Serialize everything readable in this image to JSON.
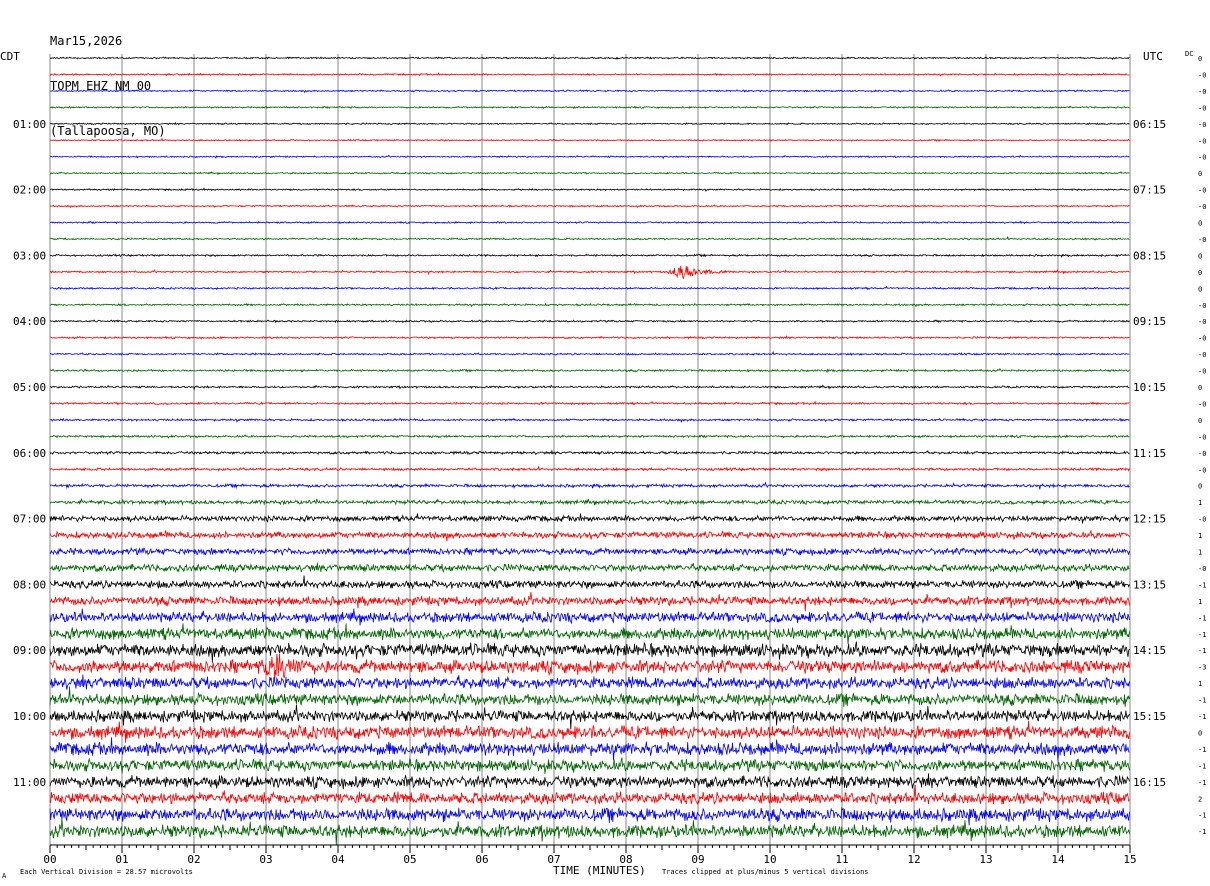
{
  "header": {
    "date": "Mar15,2026",
    "station": "TOPM EHZ NM 00",
    "location": "(Tallapoosa, MO)"
  },
  "left_timezone": "CDT",
  "right_timezone": "UTC",
  "dc_label": "DC",
  "footer": {
    "left_mark": "A",
    "vertical_division": "Each Vertical Division =   28.57 microvolts",
    "xlabel": "TIME (MINUTES)",
    "clip_note": "Traces clipped at plus/minus 5 vertical divisions"
  },
  "chart_data": {
    "type": "helicorder",
    "xlabel": "TIME (MINUTES)",
    "xlim": [
      0,
      15
    ],
    "x_ticks": [
      "00",
      "01",
      "02",
      "03",
      "04",
      "05",
      "06",
      "07",
      "08",
      "09",
      "10",
      "11",
      "12",
      "13",
      "14",
      "15"
    ],
    "trace_minutes": 15,
    "trace_count": 48,
    "trace_colors": [
      "#000000",
      "#ff0000",
      "#0000ff",
      "#006400"
    ],
    "left_hour_labels": [
      "01:00",
      "02:00",
      "03:00",
      "04:00",
      "05:00",
      "06:00",
      "07:00",
      "08:00",
      "09:00",
      "10:00",
      "11:00"
    ],
    "right_hour_labels": [
      "06:15",
      "07:15",
      "08:15",
      "09:15",
      "10:15",
      "11:15",
      "12:15",
      "13:15",
      "14:15",
      "15:15",
      "16:15"
    ],
    "hour_label_trace_index": [
      4,
      8,
      12,
      16,
      20,
      24,
      28,
      32,
      36,
      40,
      44
    ],
    "dc_offsets": [
      "0",
      "-0",
      "-0",
      "-0",
      "-0",
      "-0",
      "-0",
      "0",
      "-0",
      "-0",
      "0",
      "-0",
      "0",
      "0",
      "0",
      "-0",
      "-0",
      "-0",
      "-0",
      "-0",
      "0",
      "-0",
      "0",
      "-0",
      "-0",
      "-0",
      "0",
      "1",
      "-0",
      "1",
      "1",
      "-0",
      "-1",
      "1",
      "-1",
      "-1",
      "-1",
      "-3",
      "1",
      "-1",
      "-1",
      "0",
      "-1",
      "-1",
      "-1",
      "2",
      "-1",
      "-1"
    ],
    "noise_amplitude": [
      0.6,
      0.6,
      0.6,
      0.6,
      0.55,
      0.55,
      0.55,
      0.55,
      0.6,
      0.6,
      0.6,
      0.65,
      0.7,
      0.7,
      0.7,
      0.7,
      0.7,
      0.7,
      0.7,
      0.75,
      0.75,
      0.75,
      0.8,
      0.8,
      1.0,
      1.0,
      1.2,
      1.5,
      2.2,
      2.5,
      2.5,
      2.8,
      3.0,
      3.5,
      4.0,
      4.5,
      5.0,
      5.0,
      4.5,
      4.5,
      4.5,
      5.0,
      5.0,
      4.5,
      4.5,
      4.5,
      5.0,
      5.0
    ],
    "events": [
      {
        "trace": 13,
        "minute": 8.8,
        "amplitude": 7
      },
      {
        "trace": 37,
        "minute": 3.15,
        "amplitude": 10
      }
    ]
  }
}
